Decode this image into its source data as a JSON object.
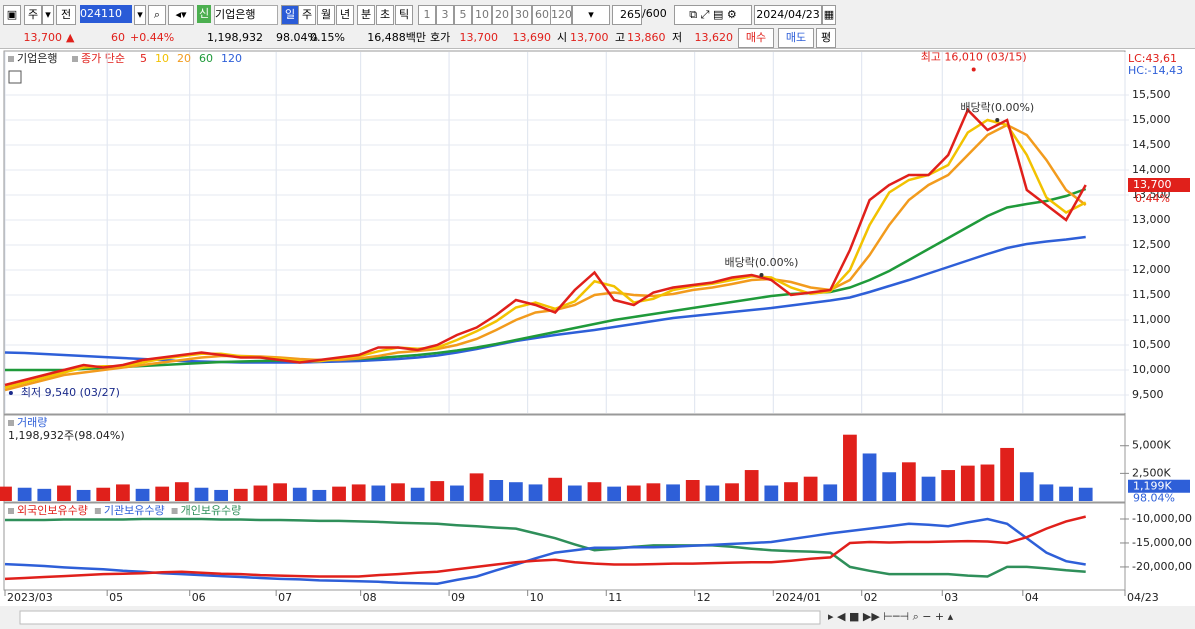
{
  "toolbar": {
    "market": "주",
    "mode": "전",
    "code": "024110",
    "badge": "신",
    "name": "기업은행",
    "periods": [
      "일",
      "주",
      "월",
      "년",
      "분",
      "초",
      "틱"
    ],
    "intervals": [
      "1",
      "3",
      "5",
      "10",
      "20",
      "30",
      "60",
      "120"
    ],
    "count": "265",
    "max": "/600",
    "date": "2024/04/23"
  },
  "quote": {
    "price": "13,700",
    "arrow": "▲",
    "change": "60",
    "rate": "+0.44%",
    "volume": "1,198,932",
    "vol_ratio": "98.04%",
    "turnover": "0.15%",
    "amount": "16,488백만",
    "ask_label": "호가",
    "ask": "13,700",
    "bid": "13,690",
    "open_label": "시",
    "open": "13,700",
    "high_label": "고",
    "high": "13,860",
    "low_label": "저",
    "low": "13,620",
    "buy": "매수",
    "sell": "매도",
    "avg": "평"
  },
  "chart_data": [
    {
      "type": "line",
      "title": "기업은행",
      "legend_title": "종가 단순",
      "xlim": [
        0,
        57
      ],
      "ylim": [
        9140,
        16340
      ],
      "grid": true,
      "yticks": [
        {
          "value": 9500,
          "label": "9,500"
        },
        {
          "value": 10000,
          "label": "10,000"
        },
        {
          "value": 10500,
          "label": "10,500"
        },
        {
          "value": 11000,
          "label": "11,000"
        },
        {
          "value": 11500,
          "label": "11,500"
        },
        {
          "value": 12000,
          "label": "12,000"
        },
        {
          "value": 12500,
          "label": "12,500"
        },
        {
          "value": 13000,
          "label": "13,000"
        },
        {
          "value": 13500,
          "label": "13,500"
        },
        {
          "value": 14000,
          "label": "14,000"
        },
        {
          "value": 14500,
          "label": "14,500"
        },
        {
          "value": 15000,
          "label": "15,000"
        },
        {
          "value": 15500,
          "label": "15,500"
        }
      ],
      "series": [
        {
          "name": "5",
          "color": "#e0201b",
          "values": [
            9700,
            9800,
            9900,
            10000,
            10100,
            10050,
            10100,
            10200,
            10250,
            10300,
            10350,
            10300,
            10250,
            10250,
            10200,
            10150,
            10200,
            10250,
            10300,
            10450,
            10450,
            10400,
            10500,
            10700,
            10850,
            11100,
            11400,
            11300,
            11150,
            11600,
            11950,
            11400,
            11300,
            11550,
            11650,
            11700,
            11750,
            11850,
            11900,
            11800,
            11500,
            11550,
            11600,
            12400,
            13400,
            13700,
            13900,
            13900,
            14300,
            15200,
            14800,
            15000,
            13600,
            13300,
            13000,
            13700
          ]
        },
        {
          "name": "10",
          "color": "#f2c200",
          "values": [
            9650,
            9750,
            9850,
            9950,
            10050,
            10075,
            10075,
            10150,
            10225,
            10275,
            10325,
            10325,
            10275,
            10250,
            10225,
            10175,
            10175,
            10225,
            10275,
            10375,
            10450,
            10425,
            10450,
            10600,
            10775,
            10975,
            11250,
            11350,
            11225,
            11375,
            11775,
            11675,
            11350,
            11425,
            11600,
            11675,
            11725,
            11800,
            11875,
            11850,
            11650,
            11525,
            11575,
            12000,
            12900,
            13550,
            13800,
            13900,
            14100,
            14750,
            15000,
            14900,
            14300,
            13450,
            13150,
            13350
          ]
        },
        {
          "name": "20",
          "color": "#f29b1d",
          "values": [
            9600,
            9700,
            9800,
            9900,
            9950,
            10000,
            10050,
            10100,
            10150,
            10200,
            10250,
            10280,
            10280,
            10270,
            10250,
            10220,
            10200,
            10200,
            10230,
            10280,
            10350,
            10380,
            10420,
            10500,
            10620,
            10800,
            11000,
            11150,
            11200,
            11300,
            11500,
            11550,
            11500,
            11480,
            11520,
            11600,
            11650,
            11720,
            11800,
            11820,
            11760,
            11650,
            11600,
            11800,
            12300,
            12900,
            13400,
            13700,
            13900,
            14300,
            14700,
            14900,
            14700,
            14200,
            13600,
            13300
          ]
        },
        {
          "name": "60",
          "color": "#1f9a3a",
          "values": [
            10000,
            10000,
            10000,
            10000,
            10020,
            10040,
            10060,
            10080,
            10100,
            10120,
            10140,
            10160,
            10170,
            10180,
            10190,
            10200,
            10200,
            10210,
            10220,
            10240,
            10270,
            10300,
            10340,
            10390,
            10450,
            10520,
            10600,
            10680,
            10760,
            10840,
            10920,
            11000,
            11060,
            11120,
            11180,
            11240,
            11300,
            11360,
            11420,
            11480,
            11520,
            11540,
            11560,
            11650,
            11800,
            11980,
            12200,
            12420,
            12640,
            12860,
            13080,
            13250,
            13320,
            13380,
            13480,
            13620
          ]
        },
        {
          "name": "120",
          "color": "#2e5fd8",
          "values": [
            10350,
            10340,
            10320,
            10300,
            10280,
            10260,
            10240,
            10220,
            10200,
            10180,
            10170,
            10160,
            10150,
            10150,
            10150,
            10150,
            10160,
            10170,
            10180,
            10200,
            10220,
            10250,
            10290,
            10350,
            10420,
            10500,
            10580,
            10640,
            10700,
            10750,
            10800,
            10860,
            10920,
            10980,
            11040,
            11080,
            11120,
            11160,
            11200,
            11240,
            11290,
            11340,
            11390,
            11450,
            11560,
            11680,
            11800,
            11930,
            12060,
            12190,
            12320,
            12440,
            12520,
            12570,
            12610,
            12660
          ]
        }
      ],
      "annotations": [
        {
          "text": "최고 16,010 (03/15)",
          "x": 49.3,
          "y": 16010,
          "color": "#e0201b"
        },
        {
          "text": "최저 9,540 (03/27)",
          "x": 0.3,
          "y": 9540,
          "color": "#1a2a8a"
        },
        {
          "text": "배당락(0.00%)",
          "x": 38.5,
          "y": 11900,
          "color": "#333333"
        },
        {
          "text": "배당락(0.00%)",
          "x": 50.5,
          "y": 15000,
          "color": "#333333"
        }
      ],
      "current": {
        "value": 13700,
        "label": "13,700",
        "rate": "0.44%"
      },
      "lc": "LC:43,61",
      "hc": "HC:-14,43"
    },
    {
      "type": "bar",
      "title": "거래량",
      "subtitle": "1,198,932주(98.04%)",
      "xlim": [
        0,
        57
      ],
      "ylim": [
        0,
        7600
      ],
      "up_color": "#e0201b",
      "down_color": "#2e5fd8",
      "yticks": [
        {
          "value": 2500,
          "label": "2,500K"
        },
        {
          "value": 5000,
          "label": "5,000K"
        }
      ],
      "values": [
        1300,
        1200,
        1100,
        1400,
        1000,
        1200,
        1500,
        1100,
        1300,
        1700,
        1200,
        1000,
        1100,
        1400,
        1600,
        1200,
        1000,
        1300,
        1500,
        1400,
        1600,
        1200,
        1800,
        1400,
        2500,
        1900,
        1700,
        1500,
        2100,
        1400,
        1700,
        1300,
        1400,
        1600,
        1500,
        1900,
        1400,
        1600,
        2800,
        1400,
        1700,
        2200,
        1500,
        6000,
        4300,
        2600,
        3500,
        2200,
        2800,
        3200,
        3300,
        4800,
        2600,
        1500,
        1300,
        1199
      ],
      "current_label": "1,199K",
      "current_pct": "98.04%"
    },
    {
      "type": "line",
      "xlim": [
        0,
        57
      ],
      "ylim": [
        -24600000,
        -7080000
      ],
      "yticks": [
        {
          "value": -20000000,
          "label": "-20,000,00"
        },
        {
          "value": -15000000,
          "label": "-15,000,00"
        },
        {
          "value": -10000000,
          "label": "-10,000,00"
        }
      ],
      "xticks": [
        {
          "value": 0,
          "label": "2023/03"
        },
        {
          "value": 5.2,
          "label": "05"
        },
        {
          "value": 9.4,
          "label": "06"
        },
        {
          "value": 13.8,
          "label": "07"
        },
        {
          "value": 18.1,
          "label": "08"
        },
        {
          "value": 22.6,
          "label": "09"
        },
        {
          "value": 26.6,
          "label": "10"
        },
        {
          "value": 30.6,
          "label": "11"
        },
        {
          "value": 35.1,
          "label": "12"
        },
        {
          "value": 39.1,
          "label": "2024/01"
        },
        {
          "value": 43.6,
          "label": "02"
        },
        {
          "value": 47.7,
          "label": "03"
        },
        {
          "value": 51.8,
          "label": "04"
        },
        {
          "value": 57,
          "label": "04/23"
        }
      ],
      "series": [
        {
          "name": "외국인보유수량",
          "color": "#e0201b",
          "values": [
            -22500000,
            -22300000,
            -22100000,
            -21900000,
            -21700000,
            -21500000,
            -21400000,
            -21300000,
            -21100000,
            -21000000,
            -21200000,
            -21400000,
            -21500000,
            -21700000,
            -21800000,
            -21900000,
            -22000000,
            -22000000,
            -22000000,
            -21700000,
            -21500000,
            -21200000,
            -21000000,
            -20500000,
            -20000000,
            -19500000,
            -19000000,
            -18700000,
            -18500000,
            -19000000,
            -19300000,
            -19500000,
            -19500000,
            -19400000,
            -19300000,
            -19300000,
            -19200000,
            -19100000,
            -19000000,
            -19000000,
            -18700000,
            -18300000,
            -18000000,
            -15000000,
            -14800000,
            -14900000,
            -14800000,
            -14800000,
            -14700000,
            -14600000,
            -14700000,
            -15000000,
            -13800000,
            -12000000,
            -10500000,
            -9500000
          ]
        },
        {
          "name": "기관보유수량",
          "color": "#2e5fd8",
          "values": [
            -19400000,
            -19600000,
            -19800000,
            -20100000,
            -20300000,
            -20500000,
            -20800000,
            -21000000,
            -21300000,
            -21500000,
            -21700000,
            -21900000,
            -22100000,
            -22300000,
            -22500000,
            -22600000,
            -22800000,
            -22900000,
            -23000000,
            -23100000,
            -23300000,
            -23400000,
            -23500000,
            -22700000,
            -22000000,
            -20700000,
            -19500000,
            -18200000,
            -17000000,
            -16500000,
            -16000000,
            -16000000,
            -15900000,
            -15900000,
            -15800000,
            -15600000,
            -15400000,
            -15200000,
            -15000000,
            -14800000,
            -14200000,
            -13600000,
            -13000000,
            -12500000,
            -12000000,
            -11500000,
            -11000000,
            -11200000,
            -11500000,
            -10700000,
            -10000000,
            -11000000,
            -14000000,
            -17000000,
            -18800000,
            -19500000
          ]
        },
        {
          "name": "개인보유수량",
          "color": "#2f8f5a",
          "values": [
            -10200000,
            -10200000,
            -10200000,
            -10100000,
            -10100000,
            -10100000,
            -10100000,
            -10000000,
            -10000000,
            -10000000,
            -10000000,
            -10100000,
            -10100000,
            -10200000,
            -10200000,
            -10300000,
            -10400000,
            -10400000,
            -10500000,
            -10600000,
            -10800000,
            -10900000,
            -11000000,
            -11300000,
            -11500000,
            -11800000,
            -12000000,
            -13000000,
            -14000000,
            -15300000,
            -16500000,
            -16200000,
            -15800000,
            -15500000,
            -15500000,
            -15500000,
            -15500000,
            -15800000,
            -16200000,
            -16500000,
            -16700000,
            -16800000,
            -17000000,
            -20000000,
            -20800000,
            -21500000,
            -21500000,
            -21500000,
            -21500000,
            -21800000,
            -22000000,
            -20000000,
            -20000000,
            -20300000,
            -20700000,
            -21000000
          ]
        }
      ]
    }
  ]
}
